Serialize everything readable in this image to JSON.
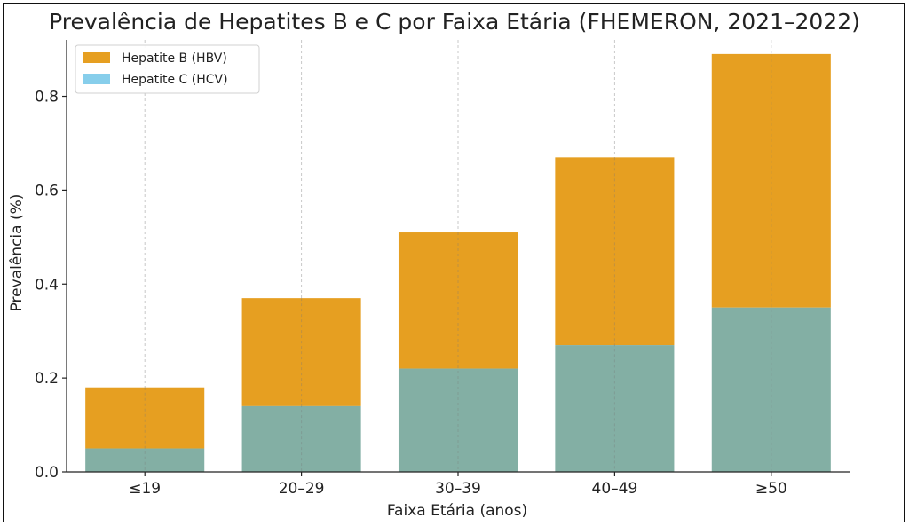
{
  "chart_data": {
    "type": "bar",
    "stacked": true,
    "title": "Prevalência de Hepatites B e C por Faixa Etária (FHEMERON, 2021–2022)",
    "xlabel": "Faixa Etária (anos)",
    "ylabel": "Prevalência (%)",
    "categories": [
      "≤19",
      "20–29",
      "30–39",
      "40–49",
      "≥50"
    ],
    "series": [
      {
        "name": "Hepatite C (HCV)",
        "values": [
          0.05,
          0.14,
          0.22,
          0.27,
          0.35
        ],
        "color": "#87CEEB"
      },
      {
        "name": "Hepatite B (HBV)",
        "values": [
          0.13,
          0.23,
          0.29,
          0.4,
          0.54
        ],
        "color": "#E69F21"
      }
    ],
    "overlap_color": "#83AFA4",
    "legend_order": [
      "Hepatite B (HBV)",
      "Hepatite C (HCV)"
    ],
    "ylim": [
      0,
      0.92
    ],
    "yticks": [
      0.0,
      0.2,
      0.4,
      0.6,
      0.8
    ],
    "ytick_labels": [
      "0.0",
      "0.2",
      "0.4",
      "0.6",
      "0.8"
    ],
    "grid": "x-dashed",
    "legend_position": "top-left"
  }
}
